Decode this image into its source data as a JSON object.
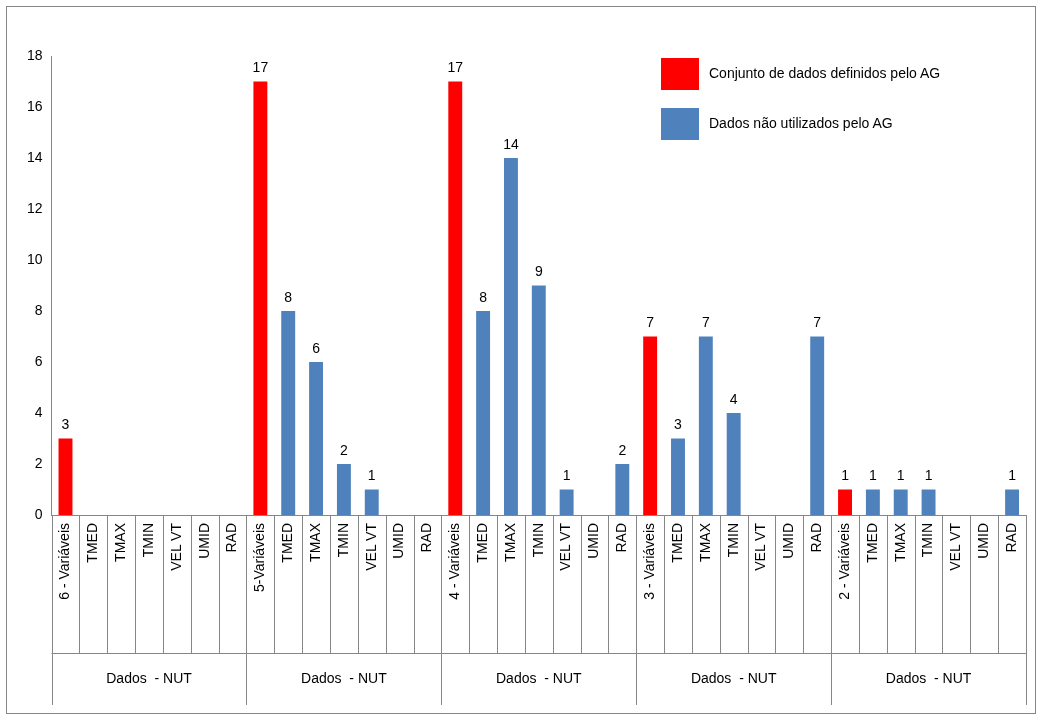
{
  "chart_data": {
    "type": "bar",
    "categories": [
      "6 - Variáveis",
      "TMED",
      "TMAX",
      "TMIN",
      "VEL VT",
      "UMID",
      "RAD",
      "5-Variáveis",
      "TMED",
      "TMAX",
      "TMIN",
      "VEL VT",
      "UMID",
      "RAD",
      "4 - Variáveis",
      "TMED",
      "TMAX",
      "TMIN",
      "VEL VT",
      "UMID",
      "RAD",
      "3 - Variáveis",
      "TMED",
      "TMAX",
      "TMIN",
      "VEL VT",
      "UMID",
      "RAD",
      "2 - Variáveis",
      "TMED",
      "TMAX",
      "TMIN",
      "VEL VT",
      "UMID",
      "RAD"
    ],
    "series": [
      {
        "name": "Conjunto de dados definidos pelo AG",
        "color": "#ff0000",
        "values": [
          3,
          null,
          null,
          null,
          null,
          null,
          null,
          17,
          null,
          null,
          null,
          null,
          null,
          null,
          17,
          null,
          null,
          null,
          null,
          null,
          null,
          7,
          null,
          null,
          null,
          null,
          null,
          null,
          1,
          null,
          null,
          null,
          null,
          null,
          null
        ]
      },
      {
        "name": "Dados não utilizados pelo AG",
        "color": "#4f81bd",
        "values": [
          null,
          null,
          null,
          null,
          null,
          null,
          null,
          null,
          8,
          6,
          2,
          1,
          null,
          null,
          null,
          8,
          14,
          9,
          1,
          null,
          2,
          null,
          3,
          7,
          4,
          null,
          null,
          7,
          null,
          1,
          1,
          1,
          null,
          null,
          1
        ]
      }
    ],
    "annotations": [
      "Dados  - NUT",
      "Dados  - NUT",
      "Dados  - NUT",
      "Dados  - NUT",
      "Dados  - NUT"
    ],
    "ylim": [
      0,
      18
    ],
    "yticks": [
      0,
      2,
      4,
      6,
      8,
      10,
      12,
      14,
      16,
      18
    ],
    "data_labels": true,
    "legend": "top right",
    "grid": false
  }
}
